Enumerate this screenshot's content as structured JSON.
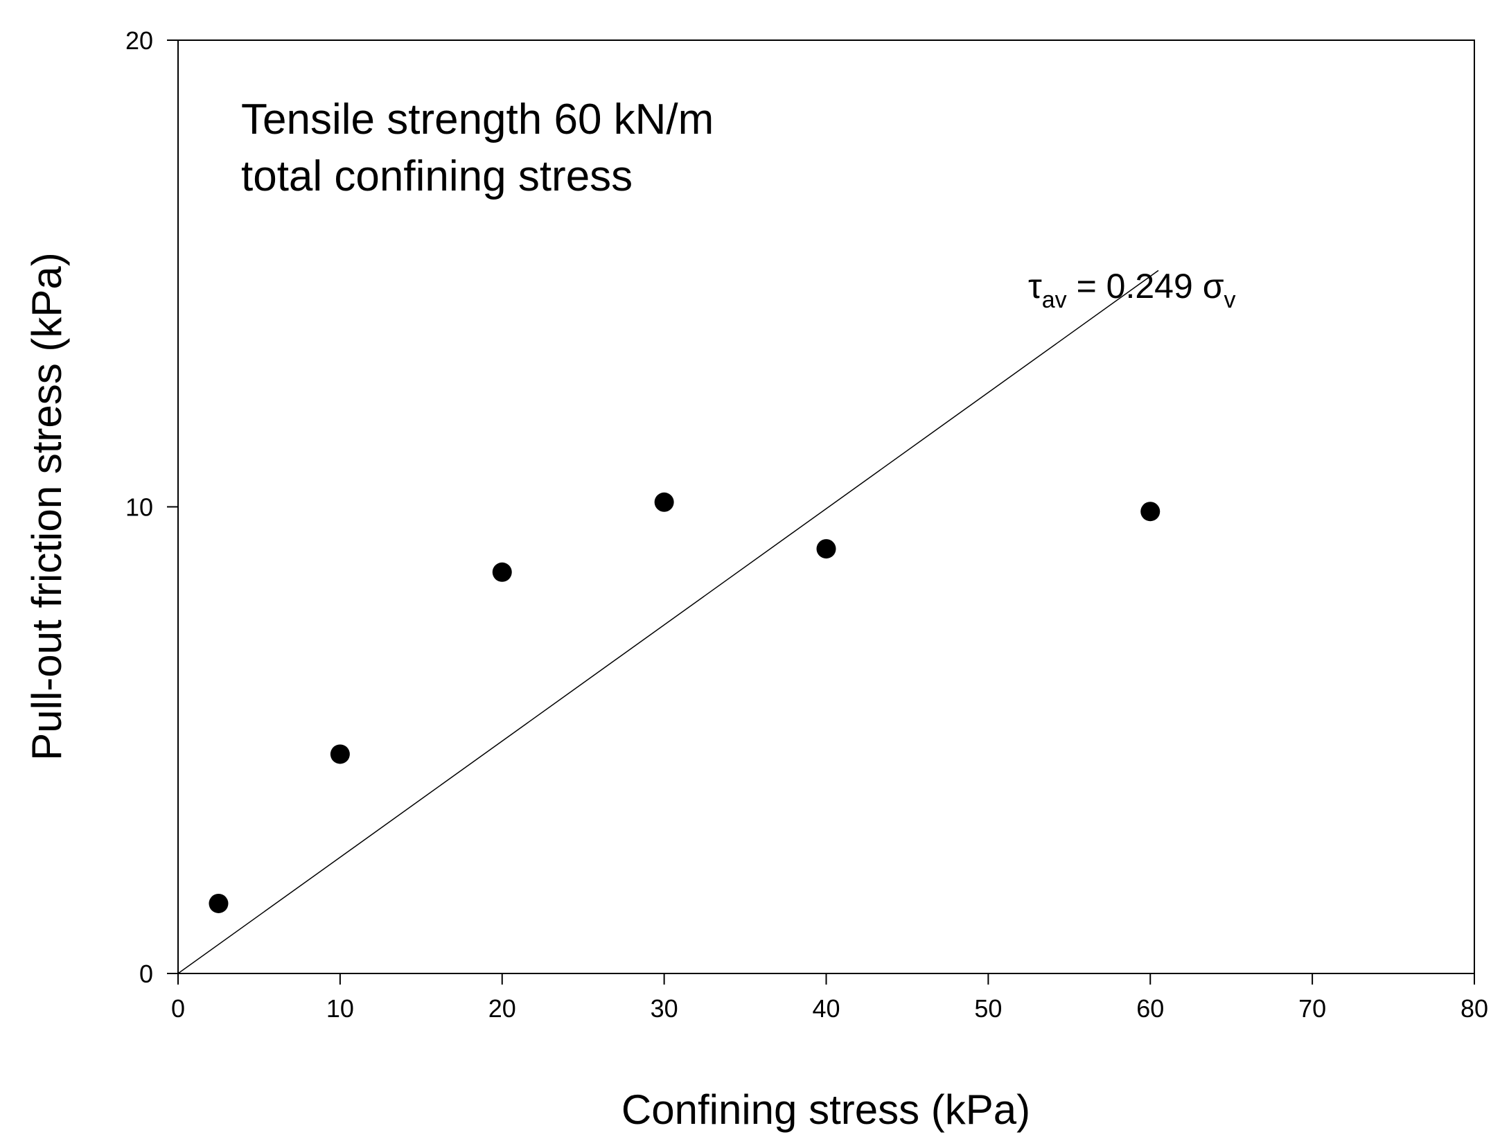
{
  "chart_data": {
    "type": "scatter",
    "title": "",
    "xlabel": "Confining stress (kPa)",
    "ylabel": "Pull-out friction stress (kPa)",
    "xlim": [
      0,
      80
    ],
    "ylim": [
      0,
      20
    ],
    "x_ticks": [
      "0",
      "10",
      "20",
      "30",
      "40",
      "50",
      "60",
      "70",
      "80"
    ],
    "y_ticks": [
      "0",
      "10",
      "20"
    ],
    "grid": false,
    "series": [
      {
        "name": "Tensile strength 60 kN/m, total confining stress",
        "points": [
          {
            "x": 2.5,
            "y": 1.5
          },
          {
            "x": 10,
            "y": 4.7
          },
          {
            "x": 20,
            "y": 8.6
          },
          {
            "x": 30,
            "y": 10.1
          },
          {
            "x": 40,
            "y": 9.1
          },
          {
            "x": 60,
            "y": 9.9
          }
        ]
      }
    ],
    "fit_line": {
      "slope": 0.249,
      "x_range": [
        0,
        60.5
      ],
      "label_parts": [
        "τ",
        "av",
        " = 0.249 ",
        "σ",
        "v"
      ]
    },
    "annotations": [
      "Tensile strength 60 kN/m",
      "total confining stress"
    ]
  }
}
